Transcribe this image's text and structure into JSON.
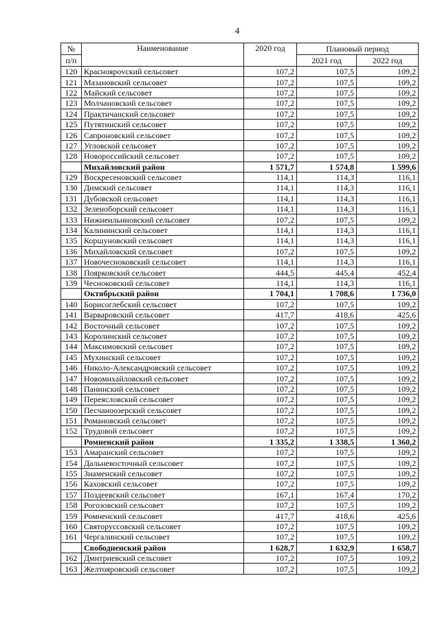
{
  "page_number": "4",
  "table": {
    "headers": {
      "num": "№",
      "num2": "п/п",
      "name": "Наименование",
      "y2020": "2020 год",
      "plan": "Плановый период",
      "y2021": "2021 год",
      "y2022": "2022 год"
    },
    "rows": [
      {
        "num": "120",
        "name": "Красноярovский сельсовет",
        "v2020": "107,2",
        "v2021": "107,5",
        "v2022": "109,2"
      },
      {
        "num": "121",
        "name": "Мазановский сельсовет",
        "v2020": "107,2",
        "v2021": "107,5",
        "v2022": "109,2"
      },
      {
        "num": "122",
        "name": "Майский сельсовет",
        "v2020": "107,2",
        "v2021": "107,5",
        "v2022": "109,2"
      },
      {
        "num": "123",
        "name": "Молчановский сельсовет",
        "v2020": "107,2",
        "v2021": "107,5",
        "v2022": "109,2"
      },
      {
        "num": "124",
        "name": "Практичанский сельсовет",
        "v2020": "107,2",
        "v2021": "107,5",
        "v2022": "109,2"
      },
      {
        "num": "125",
        "name": "Путятинский сельсовет",
        "v2020": "107,2",
        "v2021": "107,5",
        "v2022": "109,2"
      },
      {
        "num": "126",
        "name": "Сапроновский сельсовет",
        "v2020": "107,2",
        "v2021": "107,5",
        "v2022": "109,2"
      },
      {
        "num": "127",
        "name": "Угловской сельсовет",
        "v2020": "107,2",
        "v2021": "107,5",
        "v2022": "109,2"
      },
      {
        "num": "128",
        "name": "Новороссийский сельсовет",
        "v2020": "107,2",
        "v2021": "107,5",
        "v2022": "109,2"
      },
      {
        "num": "",
        "name": "Михайловский район",
        "v2020": "1 571,7",
        "v2021": "1 574,8",
        "v2022": "1 599,6",
        "district": true
      },
      {
        "num": "129",
        "name": "Воскресеновский сельсовет",
        "v2020": "114,1",
        "v2021": "114,3",
        "v2022": "116,1"
      },
      {
        "num": "130",
        "name": "Димский сельсовет",
        "v2020": "114,1",
        "v2021": "114,3",
        "v2022": "116,1"
      },
      {
        "num": "131",
        "name": "Дубовской сельсовет",
        "v2020": "114,1",
        "v2021": "114,3",
        "v2022": "116,1"
      },
      {
        "num": "132",
        "name": "Зеленоборский сельсовет",
        "v2020": "114,1",
        "v2021": "114,3",
        "v2022": "116,1"
      },
      {
        "num": "133",
        "name": "Нижнеильиновский сельсовет",
        "v2020": "107,2",
        "v2021": "107,5",
        "v2022": "109,2"
      },
      {
        "num": "134",
        "name": "Калининский сельсовет",
        "v2020": "114,1",
        "v2021": "114,3",
        "v2022": "116,1"
      },
      {
        "num": "135",
        "name": "Коршуновский сельсовет",
        "v2020": "114,1",
        "v2021": "114,3",
        "v2022": "116,1"
      },
      {
        "num": "136",
        "name": "Михайловский сельсовет",
        "v2020": "107,2",
        "v2021": "107,5",
        "v2022": "109,2"
      },
      {
        "num": "137",
        "name": "Новочесноковский сельсовет",
        "v2020": "114,1",
        "v2021": "114,3",
        "v2022": "116,1"
      },
      {
        "num": "138",
        "name": "Поярковский сельсовет",
        "v2020": "444,5",
        "v2021": "445,4",
        "v2022": "452,4"
      },
      {
        "num": "139",
        "name": "Чесноковский сельсовет",
        "v2020": "114,1",
        "v2021": "114,3",
        "v2022": "116,1"
      },
      {
        "num": "",
        "name": "Октябрьский район",
        "v2020": "1 704,1",
        "v2021": "1 708,6",
        "v2022": "1 736,0",
        "district": true
      },
      {
        "num": "140",
        "name": "Борисоглебский сельсовет",
        "v2020": "107,2",
        "v2021": "107,5",
        "v2022": "109,2"
      },
      {
        "num": "141",
        "name": "Варваровский сельсовет",
        "v2020": "417,7",
        "v2021": "418,6",
        "v2022": "425,6"
      },
      {
        "num": "142",
        "name": "Восточный сельсовет",
        "v2020": "107,2",
        "v2021": "107,5",
        "v2022": "109,2"
      },
      {
        "num": "143",
        "name": "Королинский сельсовет",
        "v2020": "107,2",
        "v2021": "107,5",
        "v2022": "109,2"
      },
      {
        "num": "144",
        "name": "Максимовский сельсовет",
        "v2020": "107,2",
        "v2021": "107,5",
        "v2022": "109,2"
      },
      {
        "num": "145",
        "name": "Мухинский сельсовет",
        "v2020": "107,2",
        "v2021": "107,5",
        "v2022": "109,2"
      },
      {
        "num": "146",
        "name": "Николо-Александровский сельсовет",
        "v2020": "107,2",
        "v2021": "107,5",
        "v2022": "109,2"
      },
      {
        "num": "147",
        "name": "Новомихайловский сельсовет",
        "v2020": "107,2",
        "v2021": "107,5",
        "v2022": "109,2"
      },
      {
        "num": "148",
        "name": "Панинский сельсовет",
        "v2020": "107,2",
        "v2021": "107,5",
        "v2022": "109,2"
      },
      {
        "num": "149",
        "name": "Переясловский сельсовет",
        "v2020": "107,2",
        "v2021": "107,5",
        "v2022": "109,2"
      },
      {
        "num": "150",
        "name": "Песчаноозерский сельсовет",
        "v2020": "107,2",
        "v2021": "107,5",
        "v2022": "109,2"
      },
      {
        "num": "151",
        "name": "Романовский сельсовет",
        "v2020": "107,2",
        "v2021": "107,5",
        "v2022": "109,2"
      },
      {
        "num": "152",
        "name": "Трудовой сельсовет",
        "v2020": "107,2",
        "v2021": "107,5",
        "v2022": "109,2"
      },
      {
        "num": "",
        "name": "Ромненский район",
        "v2020": "1 335,2",
        "v2021": "1 338,5",
        "v2022": "1 360,2",
        "district": true
      },
      {
        "num": "153",
        "name": "Амаранский сельсовет",
        "v2020": "107,2",
        "v2021": "107,5",
        "v2022": "109,2"
      },
      {
        "num": "154",
        "name": "Дальневосточный сельсовет",
        "v2020": "107,2",
        "v2021": "107,5",
        "v2022": "109,2"
      },
      {
        "num": "155",
        "name": "Знаменский сельсовет",
        "v2020": "107,2",
        "v2021": "107,5",
        "v2022": "109,2"
      },
      {
        "num": "156",
        "name": "Каховский сельсовет",
        "v2020": "107,2",
        "v2021": "107,5",
        "v2022": "109,2"
      },
      {
        "num": "157",
        "name": "Поздеевский сельсовет",
        "v2020": "167,1",
        "v2021": "167,4",
        "v2022": "170,2"
      },
      {
        "num": "158",
        "name": "Рогозовский сельсовет",
        "v2020": "107,2",
        "v2021": "107,5",
        "v2022": "109,2"
      },
      {
        "num": "159",
        "name": "Ромненский сельсовет",
        "v2020": "417,7",
        "v2021": "418,6",
        "v2022": "425,6"
      },
      {
        "num": "160",
        "name": "Святоруссовский сельсовет",
        "v2020": "107,2",
        "v2021": "107,5",
        "v2022": "109,2"
      },
      {
        "num": "161",
        "name": "Чергалинский сельсовет",
        "v2020": "107,2",
        "v2021": "107,5",
        "v2022": "109,2"
      },
      {
        "num": "",
        "name": "Свободненский район",
        "v2020": "1 628,7",
        "v2021": "1 632,9",
        "v2022": "1 658,7",
        "district": true
      },
      {
        "num": "162",
        "name": "Дмитриевский сельсовет",
        "v2020": "107,2",
        "v2021": "107,5",
        "v2022": "109,2"
      },
      {
        "num": "163",
        "name": "Желтояровский сельсовет",
        "v2020": "107,2",
        "v2021": "107,5",
        "v2022": "109,2"
      }
    ]
  }
}
